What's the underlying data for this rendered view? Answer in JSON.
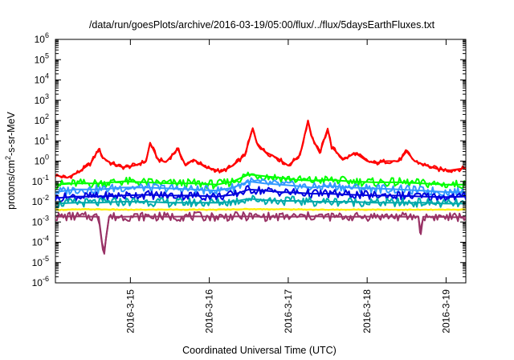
{
  "chart_data": {
    "type": "line",
    "title": "/data/run/goesPlots/archive/2016-03-19/05:00/flux/../flux/5daysEarthFluxes.txt",
    "xlabel": "Coordinated Universal Time (UTC)",
    "ylabel_main": "protons/cm",
    "ylabel_sup": "2",
    "ylabel_rest": "-s-sr-MeV",
    "yscale": "log",
    "ylim": [
      1e-06,
      1000000.0
    ],
    "y_ticks": [
      {
        "base": "10",
        "exp": "-6",
        "value": 1e-06
      },
      {
        "base": "10",
        "exp": "-5",
        "value": 1e-05
      },
      {
        "base": "10",
        "exp": "-4",
        "value": 0.0001
      },
      {
        "base": "10",
        "exp": "-3",
        "value": 0.001
      },
      {
        "base": "10",
        "exp": "-2",
        "value": 0.01
      },
      {
        "base": "10",
        "exp": "-1",
        "value": 0.1
      },
      {
        "base": "10",
        "exp": "0",
        "value": 1
      },
      {
        "base": "10",
        "exp": "1",
        "value": 10
      },
      {
        "base": "10",
        "exp": "2",
        "value": 100
      },
      {
        "base": "10",
        "exp": "3",
        "value": 1000
      },
      {
        "base": "10",
        "exp": "4",
        "value": 10000
      },
      {
        "base": "10",
        "exp": "5",
        "value": 100000
      },
      {
        "base": "10",
        "exp": "6",
        "value": 1000000
      }
    ],
    "xlim": [
      14.05,
      19.25
    ],
    "x_ticks": [
      {
        "label": "2016-3-15",
        "value": 15
      },
      {
        "label": "2016-3-16",
        "value": 16
      },
      {
        "label": "2016-3-17",
        "value": 17
      },
      {
        "label": "2016-3-18",
        "value": 18
      },
      {
        "label": "2016-3-19",
        "value": 19
      }
    ],
    "grid": false,
    "series": [
      {
        "color": "#ff0000",
        "x": [
          14.05,
          14.2,
          14.35,
          14.5,
          14.6,
          14.65,
          14.75,
          14.9,
          15.05,
          15.2,
          15.25,
          15.35,
          15.45,
          15.6,
          15.7,
          15.8,
          15.95,
          16.05,
          16.15,
          16.3,
          16.45,
          16.55,
          16.6,
          16.7,
          16.85,
          17.0,
          17.15,
          17.25,
          17.3,
          17.4,
          17.5,
          17.55,
          17.7,
          17.85,
          18.0,
          18.1,
          18.25,
          18.4,
          18.5,
          18.6,
          18.75,
          18.9,
          19.05,
          19.15,
          19.25
        ],
        "values": [
          0.2,
          0.15,
          0.3,
          0.8,
          4,
          1.5,
          0.8,
          0.5,
          0.6,
          1.0,
          8,
          1.2,
          0.9,
          4,
          0.6,
          1.2,
          0.5,
          0.4,
          0.3,
          0.6,
          2.0,
          40,
          8,
          3,
          1.5,
          0.6,
          2.0,
          100,
          15,
          2.5,
          40,
          5,
          1.2,
          2.5,
          1.0,
          0.8,
          1.0,
          1.0,
          3.0,
          1.0,
          0.6,
          0.4,
          0.35,
          0.4,
          0.45
        ]
      },
      {
        "color": "#00ff00",
        "x": [
          14.05,
          14.3,
          14.6,
          14.9,
          15.2,
          15.5,
          15.8,
          16.1,
          16.3,
          16.5,
          16.7,
          16.9,
          17.1,
          17.3,
          17.5,
          17.8,
          18.1,
          18.4,
          18.7,
          19.0,
          19.25
        ],
        "values": [
          0.07,
          0.08,
          0.08,
          0.1,
          0.09,
          0.08,
          0.08,
          0.07,
          0.1,
          0.22,
          0.18,
          0.15,
          0.12,
          0.11,
          0.12,
          0.1,
          0.09,
          0.09,
          0.08,
          0.07,
          0.07
        ]
      },
      {
        "color": "#3399ff",
        "x": [
          14.05,
          14.3,
          14.6,
          14.9,
          15.2,
          15.5,
          15.8,
          16.1,
          16.3,
          16.5,
          16.7,
          16.9,
          17.1,
          17.3,
          17.5,
          17.8,
          18.1,
          18.4,
          18.7,
          19.0,
          19.25
        ],
        "values": [
          0.03,
          0.04,
          0.04,
          0.05,
          0.05,
          0.045,
          0.04,
          0.035,
          0.05,
          0.1,
          0.08,
          0.07,
          0.06,
          0.05,
          0.06,
          0.05,
          0.045,
          0.04,
          0.035,
          0.03,
          0.03
        ]
      },
      {
        "color": "#0000dd",
        "x": [
          14.05,
          14.3,
          14.6,
          14.9,
          15.2,
          15.5,
          15.8,
          16.1,
          16.3,
          16.5,
          16.7,
          16.9,
          17.1,
          17.3,
          17.5,
          17.8,
          18.1,
          18.4,
          18.7,
          19.0,
          19.25
        ],
        "values": [
          0.015,
          0.018,
          0.018,
          0.02,
          0.022,
          0.02,
          0.02,
          0.018,
          0.022,
          0.04,
          0.035,
          0.03,
          0.028,
          0.025,
          0.025,
          0.022,
          0.02,
          0.02,
          0.018,
          0.017,
          0.018
        ]
      },
      {
        "color": "#00aaaa",
        "x": [
          14.05,
          14.3,
          14.6,
          14.9,
          15.2,
          15.5,
          15.8,
          16.1,
          16.3,
          16.5,
          16.7,
          16.9,
          17.1,
          17.3,
          17.5,
          17.8,
          18.1,
          18.4,
          18.7,
          19.0,
          19.25
        ],
        "values": [
          0.008,
          0.009,
          0.009,
          0.01,
          0.01,
          0.009,
          0.009,
          0.009,
          0.01,
          0.014,
          0.012,
          0.011,
          0.011,
          0.01,
          0.01,
          0.01,
          0.009,
          0.009,
          0.009,
          0.008,
          0.008
        ]
      },
      {
        "color": "#ffee00",
        "x": [
          14.05,
          14.5,
          15.0,
          15.5,
          16.0,
          16.5,
          17.0,
          17.5,
          18.0,
          18.5,
          19.0,
          19.25
        ],
        "values": [
          0.004,
          0.0042,
          0.004,
          0.0041,
          0.004,
          0.0043,
          0.0042,
          0.004,
          0.0041,
          0.004,
          0.004,
          0.0041
        ]
      },
      {
        "color": "#993366",
        "x": [
          14.05,
          14.3,
          14.6,
          14.64,
          14.67,
          14.7,
          14.73,
          14.9,
          15.2,
          15.5,
          15.8,
          16.1,
          16.4,
          16.7,
          17.0,
          17.3,
          17.6,
          17.9,
          18.2,
          18.5,
          18.65,
          18.68,
          18.71,
          18.9,
          19.1,
          19.25
        ],
        "values": [
          0.0018,
          0.0019,
          0.0018,
          0.0001,
          3.5e-05,
          0.0003,
          0.0018,
          0.0018,
          0.0019,
          0.0018,
          0.0019,
          0.0018,
          0.0019,
          0.0018,
          0.0018,
          0.0019,
          0.0018,
          0.0018,
          0.0019,
          0.0018,
          0.0018,
          0.00025,
          0.0018,
          0.0018,
          0.0017,
          0.0018
        ]
      }
    ]
  }
}
